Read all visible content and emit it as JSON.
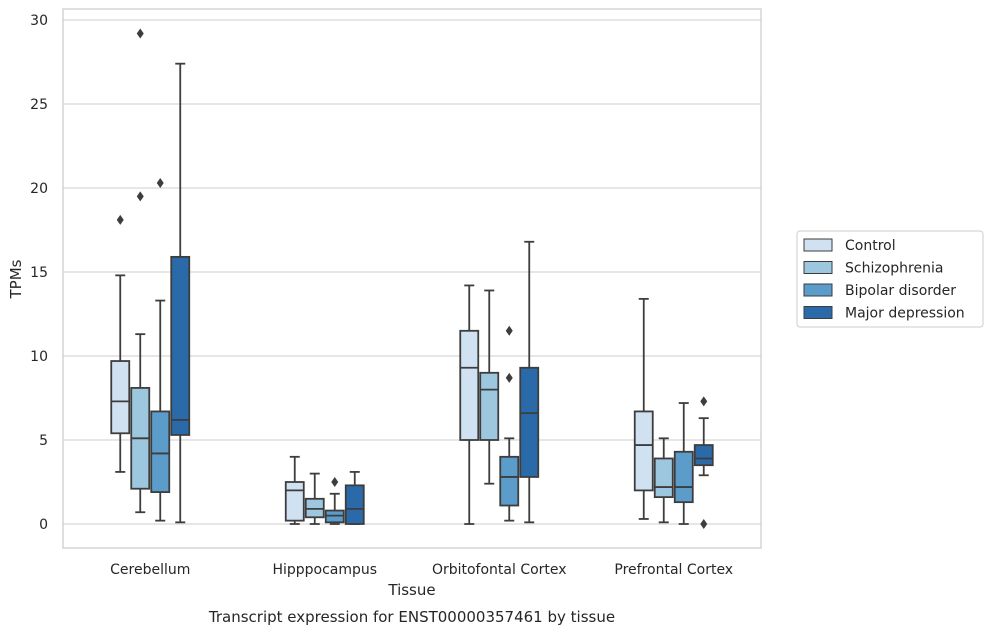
{
  "chart_data": {
    "type": "box",
    "caption": "Transcript expression for ENST00000357461 by tissue",
    "xlabel": "Tissue",
    "ylabel": "TPMs",
    "ylim": [
      -1.4,
      30.7
    ],
    "yticks": [
      0,
      5,
      10,
      15,
      20,
      25,
      30
    ],
    "grid": "horizontal",
    "legend_position": "right",
    "categories": [
      "Cerebellum",
      "Hipppocampus",
      "Orbitofontal Cortex",
      "Prefrontal Cortex"
    ],
    "series": [
      {
        "name": "Control",
        "color": "#d0e1f1",
        "boxes": [
          {
            "whisker_low": 3.1,
            "q1": 5.4,
            "median": 7.3,
            "q3": 9.7,
            "whisker_high": 14.8,
            "outliers": [
              18.1
            ]
          },
          {
            "whisker_low": 0.0,
            "q1": 0.2,
            "median": 2.0,
            "q3": 2.5,
            "whisker_high": 4.0,
            "outliers": []
          },
          {
            "whisker_low": 0.0,
            "q1": 5.0,
            "median": 9.3,
            "q3": 11.5,
            "whisker_high": 14.2,
            "outliers": []
          },
          {
            "whisker_low": 0.3,
            "q1": 2.0,
            "median": 4.7,
            "q3": 6.7,
            "whisker_high": 13.4,
            "outliers": []
          }
        ]
      },
      {
        "name": "Schizophrenia",
        "color": "#9dc6df",
        "boxes": [
          {
            "whisker_low": 0.7,
            "q1": 2.1,
            "median": 5.1,
            "q3": 8.1,
            "whisker_high": 11.3,
            "outliers": [
              19.5,
              29.2
            ]
          },
          {
            "whisker_low": 0.0,
            "q1": 0.4,
            "median": 0.9,
            "q3": 1.5,
            "whisker_high": 3.0,
            "outliers": []
          },
          {
            "whisker_low": 2.4,
            "q1": 5.0,
            "median": 8.0,
            "q3": 9.0,
            "whisker_high": 13.9,
            "outliers": []
          },
          {
            "whisker_low": 0.1,
            "q1": 1.6,
            "median": 2.2,
            "q3": 3.9,
            "whisker_high": 5.1,
            "outliers": []
          }
        ]
      },
      {
        "name": "Bipolar disorder",
        "color": "#5b9ccb",
        "boxes": [
          {
            "whisker_low": 0.2,
            "q1": 1.9,
            "median": 4.2,
            "q3": 6.7,
            "whisker_high": 13.3,
            "outliers": [
              20.3
            ]
          },
          {
            "whisker_low": 0.0,
            "q1": 0.1,
            "median": 0.5,
            "q3": 0.8,
            "whisker_high": 1.8,
            "outliers": [
              2.5
            ]
          },
          {
            "whisker_low": 0.2,
            "q1": 1.1,
            "median": 2.8,
            "q3": 4.0,
            "whisker_high": 5.1,
            "outliers": [
              8.7,
              11.5
            ]
          },
          {
            "whisker_low": 0.0,
            "q1": 1.3,
            "median": 2.2,
            "q3": 4.3,
            "whisker_high": 7.2,
            "outliers": []
          }
        ]
      },
      {
        "name": "Major depression",
        "color": "#2b6aa8",
        "boxes": [
          {
            "whisker_low": 0.1,
            "q1": 5.3,
            "median": 6.2,
            "q3": 15.9,
            "whisker_high": 27.4,
            "outliers": []
          },
          {
            "whisker_low": 0.0,
            "q1": 0.0,
            "median": 0.9,
            "q3": 2.3,
            "whisker_high": 3.1,
            "outliers": []
          },
          {
            "whisker_low": 0.1,
            "q1": 2.8,
            "median": 6.6,
            "q3": 9.3,
            "whisker_high": 16.8,
            "outliers": []
          },
          {
            "whisker_low": 2.9,
            "q1": 3.5,
            "median": 3.9,
            "q3": 4.7,
            "whisker_high": 6.3,
            "outliers": [
              0.0,
              7.3
            ]
          }
        ]
      }
    ]
  }
}
